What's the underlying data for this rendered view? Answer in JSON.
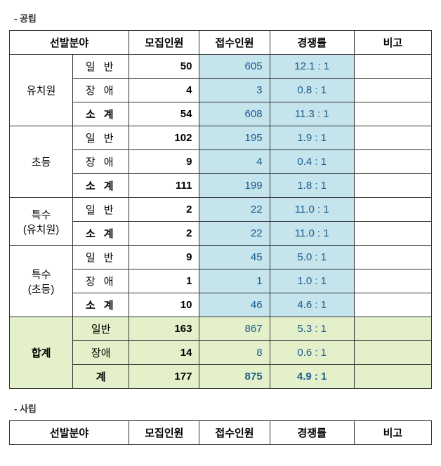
{
  "sections": {
    "public_label": "- 공립",
    "private_label": "- 사립"
  },
  "headers": {
    "field": "선발분야",
    "recruit": "모집인원",
    "apply": "접수인원",
    "ratio": "경쟁률",
    "note": "비고"
  },
  "categories": [
    {
      "name": "유치원",
      "rows": [
        {
          "sub": "일 반",
          "recruit": "50",
          "apply": "605",
          "ratio": "12.1 : 1",
          "bold": false
        },
        {
          "sub": "장 애",
          "recruit": "4",
          "apply": "3",
          "ratio": "0.8 : 1",
          "bold": false
        },
        {
          "sub": "소 계",
          "recruit": "54",
          "apply": "608",
          "ratio": "11.3 : 1",
          "bold": true
        }
      ]
    },
    {
      "name": "초등",
      "rows": [
        {
          "sub": "일 반",
          "recruit": "102",
          "apply": "195",
          "ratio": "1.9 : 1",
          "bold": false
        },
        {
          "sub": "장 애",
          "recruit": "9",
          "apply": "4",
          "ratio": "0.4 : 1",
          "bold": false
        },
        {
          "sub": "소 계",
          "recruit": "111",
          "apply": "199",
          "ratio": "1.8 : 1",
          "bold": true
        }
      ]
    },
    {
      "name": "특수\n(유치원)",
      "rows": [
        {
          "sub": "일 반",
          "recruit": "2",
          "apply": "22",
          "ratio": "11.0 : 1",
          "bold": false
        },
        {
          "sub": "소 계",
          "recruit": "2",
          "apply": "22",
          "ratio": "11.0 : 1",
          "bold": true
        }
      ]
    },
    {
      "name": "특수\n(초등)",
      "rows": [
        {
          "sub": "일 반",
          "recruit": "9",
          "apply": "45",
          "ratio": "5.0 : 1",
          "bold": false
        },
        {
          "sub": "장 애",
          "recruit": "1",
          "apply": "1",
          "ratio": "1.0 : 1",
          "bold": false
        },
        {
          "sub": "소 계",
          "recruit": "10",
          "apply": "46",
          "ratio": "4.6 : 1",
          "bold": true
        }
      ]
    }
  ],
  "total": {
    "name": "합계",
    "rows": [
      {
        "sub": "일반",
        "recruit": "163",
        "apply": "867",
        "ratio": "5.3 : 1"
      },
      {
        "sub": "장애",
        "recruit": "14",
        "apply": "8",
        "ratio": "0.6 : 1"
      },
      {
        "sub": "계",
        "recruit": "177",
        "apply": "875",
        "ratio": "4.9 : 1"
      }
    ]
  },
  "style": {
    "border_color": "#333333",
    "highlight_bg": "#c5e4ec",
    "highlight_text": "#1a5c8e",
    "total_bg": "#e3f0c9",
    "font_size_body": 15,
    "font_size_title": 13,
    "col_widths": {
      "field1": 90,
      "field2": 80,
      "recruit": 100,
      "apply": 100,
      "ratio": 120,
      "note": 110
    }
  }
}
